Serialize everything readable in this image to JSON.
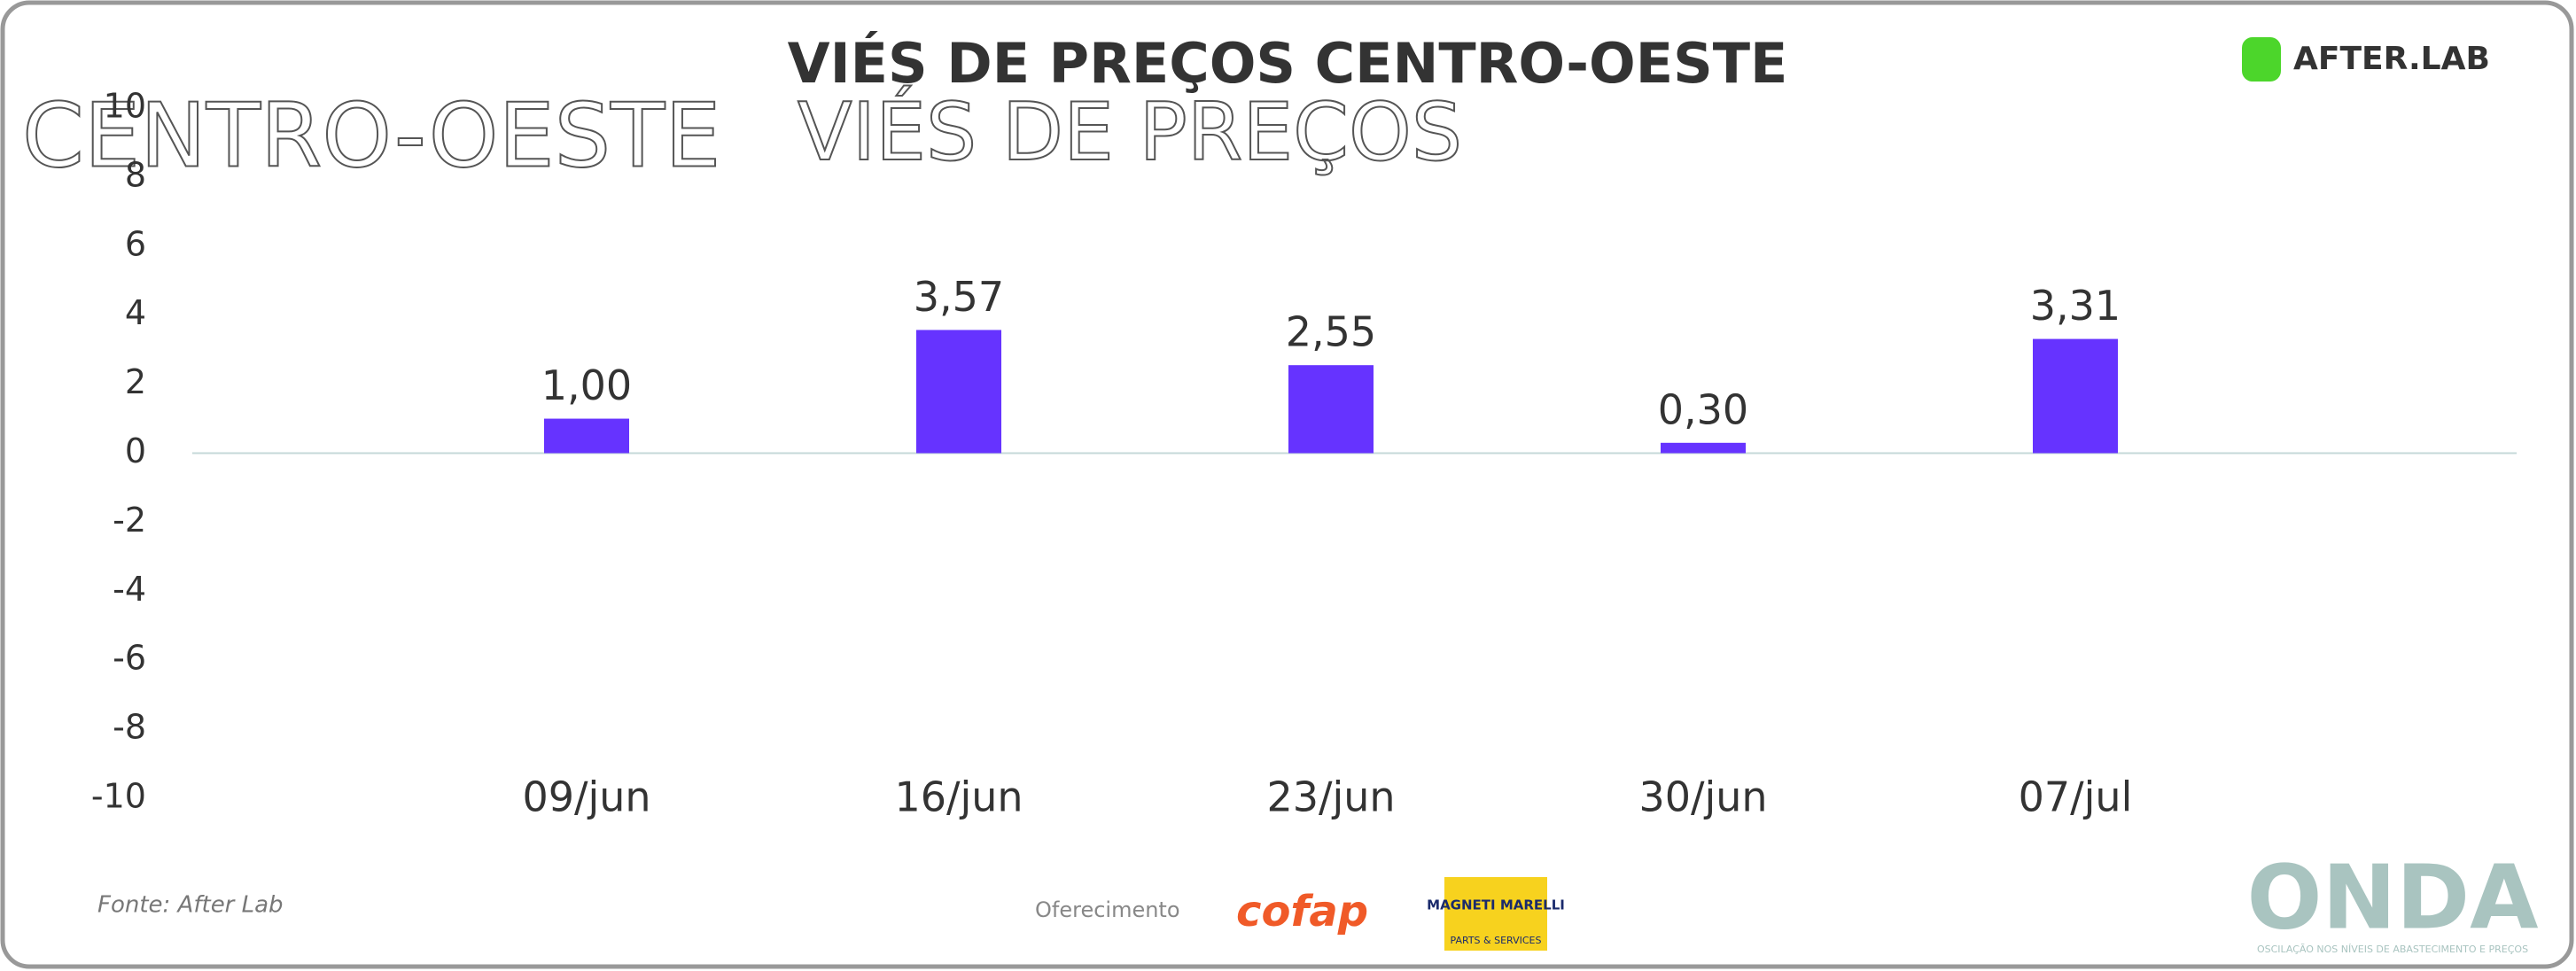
{
  "chart_data": {
    "type": "bar",
    "title": "VIÉS DE PREÇOS CENTRO-OESTE",
    "categories": [
      "09/jun",
      "16/jun",
      "23/jun",
      "30/jun",
      "07/jul"
    ],
    "values": [
      1.0,
      3.57,
      2.55,
      0.3,
      3.31
    ],
    "value_labels": [
      "1,00",
      "3,57",
      "2,55",
      "0,30",
      "3,31"
    ],
    "color": "#6633ff",
    "ylim": [
      -10,
      10
    ],
    "yticks": [
      -10,
      -8,
      -6,
      -4,
      -2,
      0,
      2,
      4,
      6,
      8,
      10
    ],
    "grid": false
  },
  "overlay": {
    "left": "CENTRO-OESTE",
    "middle": "VIÉS DE PREÇOS"
  },
  "brand": {
    "logo": "AFTER.LAB",
    "onda": "ONDA",
    "onda_tagline": "OSCILAÇÃO NOS NÍVEIS DE ABASTECIMENTO E PREÇOS"
  },
  "footer": {
    "source": "Fonte: After Lab",
    "sponsor": "Oferecimento",
    "cofap": "cofap",
    "magneti": "MAGNETI MARELLI",
    "magneti_sub": "PARTS & SERVICES"
  }
}
